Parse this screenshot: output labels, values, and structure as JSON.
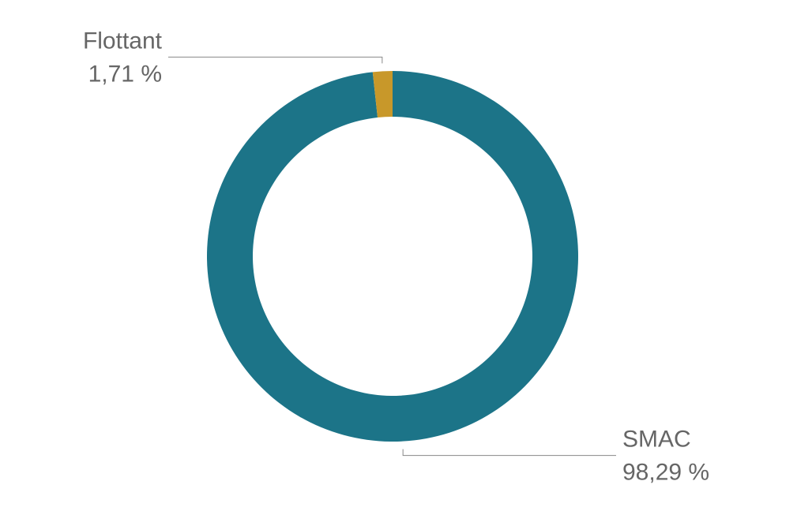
{
  "chart_data": {
    "type": "donut",
    "categories": [
      "SMAC",
      "Flottant"
    ],
    "values": [
      98.29,
      1.71
    ],
    "value_labels": [
      "98,29 %",
      "1,71 %"
    ],
    "colors": [
      "#1c7488",
      "#c8982a"
    ]
  }
}
